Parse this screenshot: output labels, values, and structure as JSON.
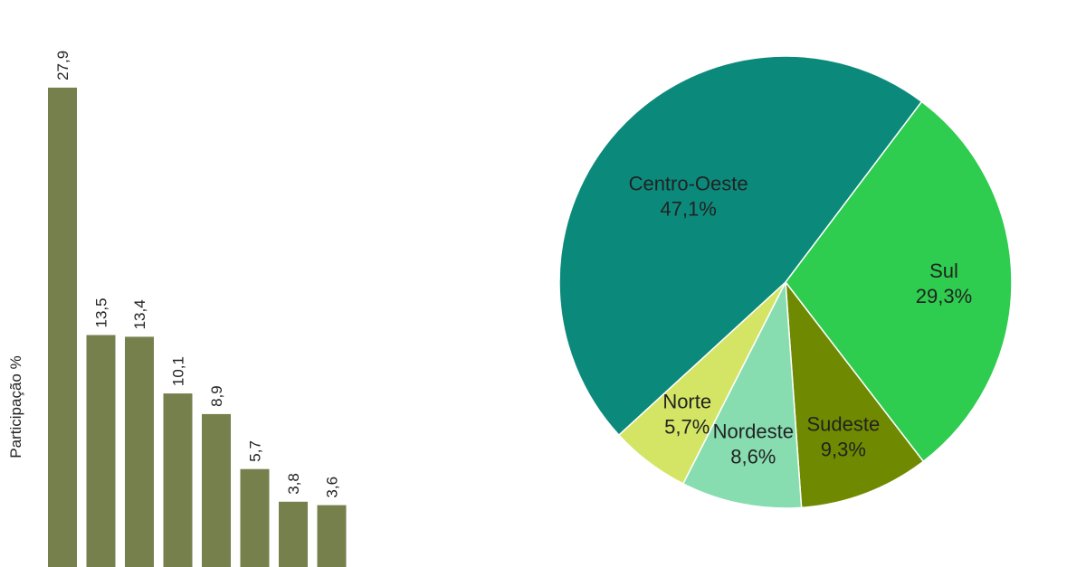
{
  "chart_data": [
    {
      "type": "bar",
      "ylabel": "Participação %",
      "color": "#76804c",
      "values": [
        27.9,
        13.5,
        13.4,
        10.1,
        8.9,
        5.7,
        3.8,
        3.6
      ],
      "value_labels": [
        "27,9",
        "13,5",
        "13,4",
        "10,1",
        "8,9",
        "5,7",
        "3,8",
        "3,6"
      ]
    },
    {
      "type": "pie",
      "slices": [
        {
          "label": "Sul",
          "value": 29.3,
          "value_label": "29,3%",
          "color": "#2ecc4f"
        },
        {
          "label": "Sudeste",
          "value": 9.3,
          "value_label": "9,3%",
          "color": "#6f8a00"
        },
        {
          "label": "Nordeste",
          "value": 8.6,
          "value_label": "8,6%",
          "color": "#87ddb0"
        },
        {
          "label": "Norte",
          "value": 5.7,
          "value_label": "5,7%",
          "color": "#d4e565"
        },
        {
          "label": "Centro-Oeste",
          "value": 47.1,
          "value_label": "47,1%",
          "color": "#0b8a7b"
        }
      ]
    }
  ]
}
